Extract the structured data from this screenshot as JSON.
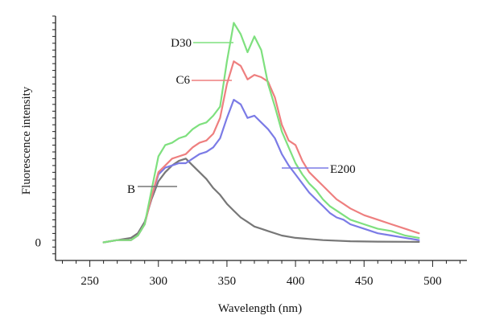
{
  "chart_data": {
    "type": "line",
    "title": "",
    "xlabel": "Wavelength (nm)",
    "ylabel": "Fluorescence intensity",
    "xlim": [
      225,
      525
    ],
    "ylim": [
      -8,
      100
    ],
    "x_ticks": [
      250,
      300,
      350,
      400,
      450,
      500
    ],
    "y_ticks": [
      0
    ],
    "grid": false,
    "legend": "inline labels",
    "series": [
      {
        "name": "D30",
        "color": "#7ee07e",
        "points": [
          [
            260,
            0
          ],
          [
            270,
            1
          ],
          [
            280,
            1
          ],
          [
            285,
            3
          ],
          [
            290,
            8
          ],
          [
            295,
            23
          ],
          [
            300,
            38
          ],
          [
            305,
            43
          ],
          [
            310,
            44
          ],
          [
            315,
            46
          ],
          [
            320,
            47
          ],
          [
            325,
            50
          ],
          [
            330,
            52
          ],
          [
            335,
            53
          ],
          [
            340,
            56
          ],
          [
            345,
            60
          ],
          [
            350,
            80
          ],
          [
            355,
            97
          ],
          [
            360,
            92
          ],
          [
            365,
            84
          ],
          [
            370,
            91
          ],
          [
            375,
            85
          ],
          [
            380,
            70
          ],
          [
            385,
            60
          ],
          [
            390,
            49
          ],
          [
            395,
            42
          ],
          [
            400,
            35
          ],
          [
            405,
            30
          ],
          [
            410,
            26
          ],
          [
            415,
            23
          ],
          [
            420,
            19
          ],
          [
            425,
            16
          ],
          [
            430,
            14
          ],
          [
            435,
            12
          ],
          [
            440,
            10
          ],
          [
            450,
            8
          ],
          [
            460,
            6
          ],
          [
            470,
            5
          ],
          [
            480,
            3
          ],
          [
            490,
            2
          ]
        ]
      },
      {
        "name": "C6",
        "color": "#ee7f7f",
        "points": [
          [
            260,
            0
          ],
          [
            270,
            1
          ],
          [
            280,
            1
          ],
          [
            285,
            3
          ],
          [
            290,
            8
          ],
          [
            295,
            20
          ],
          [
            300,
            31
          ],
          [
            305,
            34
          ],
          [
            310,
            37
          ],
          [
            315,
            38
          ],
          [
            320,
            39
          ],
          [
            325,
            42
          ],
          [
            330,
            44
          ],
          [
            335,
            45
          ],
          [
            340,
            48
          ],
          [
            345,
            55
          ],
          [
            350,
            70
          ],
          [
            355,
            80
          ],
          [
            360,
            78
          ],
          [
            365,
            72
          ],
          [
            370,
            74
          ],
          [
            375,
            73
          ],
          [
            380,
            71
          ],
          [
            385,
            64
          ],
          [
            390,
            52
          ],
          [
            395,
            45
          ],
          [
            400,
            43
          ],
          [
            405,
            36
          ],
          [
            410,
            31
          ],
          [
            415,
            28
          ],
          [
            420,
            25
          ],
          [
            425,
            22
          ],
          [
            430,
            19
          ],
          [
            435,
            17
          ],
          [
            440,
            15
          ],
          [
            450,
            12
          ],
          [
            460,
            10
          ],
          [
            470,
            8
          ],
          [
            480,
            6
          ],
          [
            490,
            4
          ]
        ]
      },
      {
        "name": "E200",
        "color": "#7b7be6",
        "points": [
          [
            260,
            0
          ],
          [
            270,
            1
          ],
          [
            280,
            1
          ],
          [
            285,
            3
          ],
          [
            290,
            8
          ],
          [
            295,
            20
          ],
          [
            300,
            30
          ],
          [
            305,
            33
          ],
          [
            310,
            34
          ],
          [
            315,
            35
          ],
          [
            320,
            35
          ],
          [
            325,
            37
          ],
          [
            330,
            39
          ],
          [
            335,
            40
          ],
          [
            340,
            42
          ],
          [
            345,
            46
          ],
          [
            350,
            55
          ],
          [
            355,
            63
          ],
          [
            360,
            61
          ],
          [
            365,
            55
          ],
          [
            370,
            56
          ],
          [
            375,
            53
          ],
          [
            380,
            50
          ],
          [
            385,
            46
          ],
          [
            390,
            39
          ],
          [
            395,
            34
          ],
          [
            400,
            30
          ],
          [
            405,
            26
          ],
          [
            410,
            22
          ],
          [
            415,
            19
          ],
          [
            420,
            16
          ],
          [
            425,
            13
          ],
          [
            430,
            11
          ],
          [
            435,
            10
          ],
          [
            440,
            8
          ],
          [
            450,
            6
          ],
          [
            460,
            4
          ],
          [
            470,
            3
          ],
          [
            480,
            2
          ],
          [
            490,
            1
          ]
        ]
      },
      {
        "name": "B",
        "color": "#777777",
        "points": [
          [
            260,
            0
          ],
          [
            270,
            1
          ],
          [
            280,
            2
          ],
          [
            285,
            4
          ],
          [
            290,
            9
          ],
          [
            295,
            19
          ],
          [
            300,
            27
          ],
          [
            305,
            31
          ],
          [
            310,
            34
          ],
          [
            315,
            36
          ],
          [
            320,
            37
          ],
          [
            325,
            34
          ],
          [
            330,
            31
          ],
          [
            335,
            28
          ],
          [
            340,
            24
          ],
          [
            345,
            21
          ],
          [
            350,
            17
          ],
          [
            355,
            14
          ],
          [
            360,
            11
          ],
          [
            365,
            9
          ],
          [
            370,
            7
          ],
          [
            375,
            6
          ],
          [
            380,
            5
          ],
          [
            390,
            3
          ],
          [
            400,
            2
          ],
          [
            410,
            1.5
          ],
          [
            420,
            1
          ],
          [
            440,
            0.5
          ],
          [
            460,
            0.3
          ],
          [
            490,
            0.2
          ]
        ]
      }
    ],
    "annotations": [
      {
        "series": "D30",
        "text": "D30"
      },
      {
        "series": "C6",
        "text": "C6"
      },
      {
        "series": "E200",
        "text": "E200"
      },
      {
        "series": "B",
        "text": "B"
      }
    ]
  }
}
